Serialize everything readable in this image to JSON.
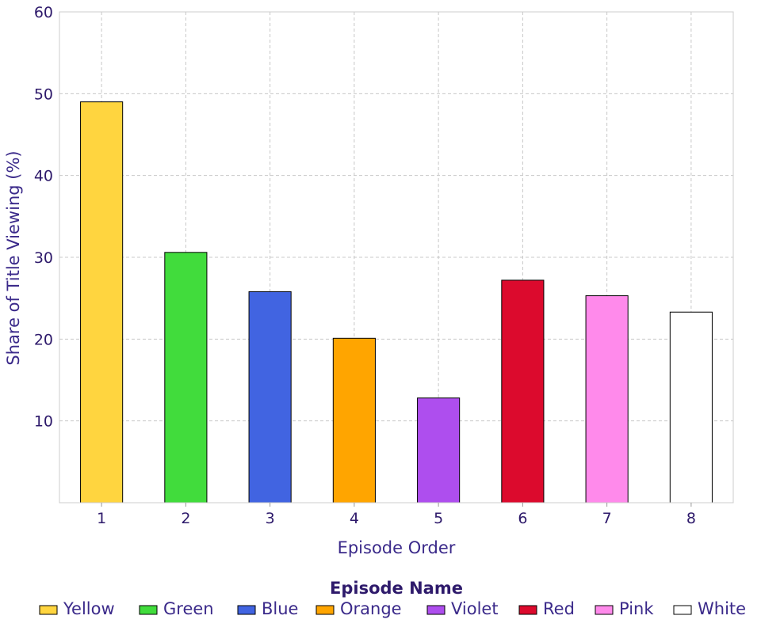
{
  "chart_data": {
    "type": "bar",
    "categories": [
      "1",
      "2",
      "3",
      "4",
      "5",
      "6",
      "7",
      "8"
    ],
    "values": [
      49.0,
      30.6,
      25.8,
      20.1,
      12.8,
      27.2,
      25.3,
      23.3
    ],
    "colors": [
      "#FFD53F",
      "#41DC3C",
      "#4164E1",
      "#FFA500",
      "#AE4EEE",
      "#DC0A2D",
      "#FF8AEB",
      "#FFFFFF"
    ],
    "xlabel": "Episode Order",
    "ylabel": "Share of Title Viewing (%)",
    "ylim": [
      0,
      60
    ],
    "yticks": [
      10,
      20,
      30,
      40,
      50,
      60
    ],
    "grid": true,
    "legend": {
      "title": "Episode Name",
      "placement": "bottom",
      "entries": [
        "Yellow",
        "Green",
        "Blue",
        "Orange",
        "Violet",
        "Red",
        "Pink",
        "White"
      ]
    }
  }
}
